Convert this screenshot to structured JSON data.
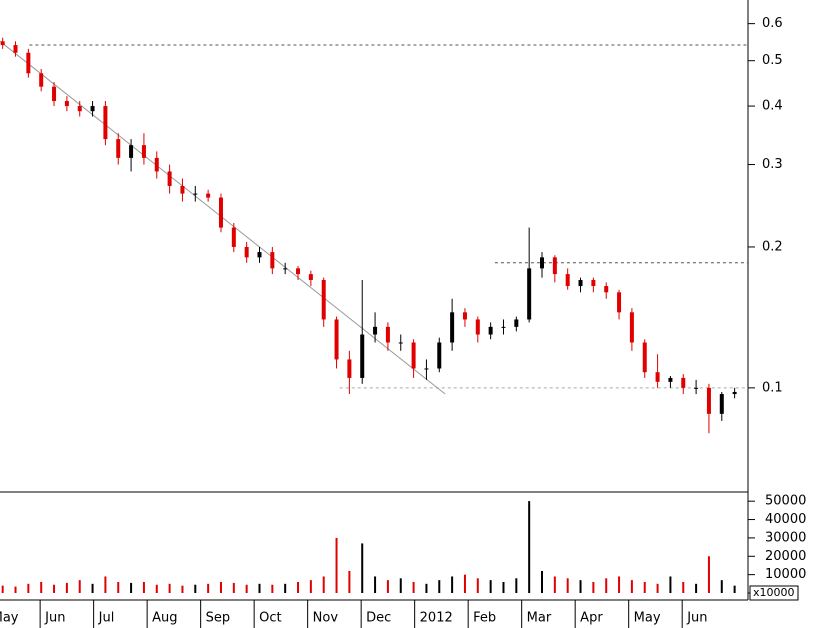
{
  "chart_data": {
    "type": "candlestick",
    "log_y": true,
    "up_color": "#000000",
    "down_color": "#e00000",
    "x": [
      0.3,
      0.54,
      0.78,
      1.02,
      1.26,
      1.5,
      1.74,
      1.98,
      2.22,
      2.46,
      2.7,
      2.94,
      3.18,
      3.42,
      3.66,
      3.9,
      4.14,
      4.38,
      4.62,
      4.86,
      5.1,
      5.34,
      5.58,
      5.82,
      6.06,
      6.3,
      6.54,
      6.78,
      7.02,
      7.26,
      7.5,
      7.74,
      7.98,
      8.22,
      8.46,
      8.7,
      8.94,
      9.18,
      9.42,
      9.66,
      9.9,
      10.14,
      10.38,
      10.62,
      10.86,
      11.1,
      11.34,
      11.58,
      11.82,
      12.06,
      12.3,
      12.54,
      12.78,
      13.02,
      13.26,
      13.5,
      13.74,
      13.98
    ],
    "open": [
      0.55,
      0.54,
      0.52,
      0.47,
      0.44,
      0.41,
      0.4,
      0.39,
      0.4,
      0.34,
      0.31,
      0.33,
      0.31,
      0.29,
      0.27,
      0.26,
      0.26,
      0.255,
      0.22,
      0.2,
      0.19,
      0.195,
      0.18,
      0.18,
      0.175,
      0.17,
      0.14,
      0.115,
      0.105,
      0.13,
      0.135,
      0.125,
      0.125,
      0.11,
      0.11,
      0.125,
      0.145,
      0.14,
      0.13,
      0.135,
      0.135,
      0.14,
      0.18,
      0.19,
      0.175,
      0.165,
      0.17,
      0.165,
      0.16,
      0.145,
      0.125,
      0.108,
      0.103,
      0.105,
      0.1,
      0.1,
      0.088,
      0.097
    ],
    "high": [
      0.56,
      0.55,
      0.53,
      0.48,
      0.45,
      0.42,
      0.41,
      0.41,
      0.41,
      0.35,
      0.34,
      0.35,
      0.32,
      0.3,
      0.28,
      0.27,
      0.265,
      0.26,
      0.225,
      0.205,
      0.2,
      0.2,
      0.185,
      0.182,
      0.178,
      0.172,
      0.142,
      0.12,
      0.17,
      0.145,
      0.138,
      0.13,
      0.127,
      0.115,
      0.128,
      0.155,
      0.148,
      0.142,
      0.138,
      0.14,
      0.142,
      0.22,
      0.195,
      0.192,
      0.18,
      0.172,
      0.172,
      0.168,
      0.162,
      0.148,
      0.127,
      0.118,
      0.106,
      0.107,
      0.104,
      0.102,
      0.098,
      0.1
    ],
    "low": [
      0.53,
      0.51,
      0.46,
      0.43,
      0.4,
      0.39,
      0.38,
      0.38,
      0.33,
      0.3,
      0.29,
      0.3,
      0.28,
      0.26,
      0.25,
      0.25,
      0.25,
      0.215,
      0.195,
      0.185,
      0.185,
      0.175,
      0.175,
      0.17,
      0.165,
      0.135,
      0.11,
      0.097,
      0.102,
      0.125,
      0.12,
      0.12,
      0.105,
      0.104,
      0.108,
      0.12,
      0.135,
      0.125,
      0.127,
      0.13,
      0.132,
      0.138,
      0.172,
      0.168,
      0.162,
      0.16,
      0.16,
      0.155,
      0.14,
      0.12,
      0.105,
      0.1,
      0.1,
      0.097,
      0.097,
      0.08,
      0.085,
      0.095
    ],
    "close": [
      0.54,
      0.52,
      0.47,
      0.44,
      0.41,
      0.4,
      0.39,
      0.4,
      0.34,
      0.31,
      0.33,
      0.31,
      0.29,
      0.27,
      0.26,
      0.26,
      0.255,
      0.22,
      0.2,
      0.19,
      0.195,
      0.18,
      0.18,
      0.175,
      0.17,
      0.14,
      0.115,
      0.105,
      0.13,
      0.135,
      0.125,
      0.125,
      0.11,
      0.11,
      0.125,
      0.145,
      0.14,
      0.13,
      0.135,
      0.135,
      0.14,
      0.18,
      0.19,
      0.175,
      0.165,
      0.17,
      0.165,
      0.16,
      0.145,
      0.125,
      0.108,
      0.103,
      0.105,
      0.1,
      0.1,
      0.088,
      0.097,
      0.098
    ],
    "volume": [
      4000,
      3500,
      5000,
      6000,
      4500,
      5500,
      7000,
      5000,
      9000,
      6000,
      5500,
      6000,
      4500,
      5000,
      4000,
      4500,
      5000,
      6000,
      5500,
      4500,
      5000,
      4500,
      5000,
      6000,
      7000,
      9000,
      30000,
      12000,
      27000,
      9000,
      7000,
      8000,
      6000,
      5000,
      7000,
      9000,
      10000,
      8000,
      7000,
      6000,
      8000,
      50000,
      12000,
      9000,
      8000,
      7000,
      6000,
      8000,
      9000,
      7000,
      6000,
      5000,
      9000,
      6000,
      5000,
      20000,
      7000,
      4000
    ],
    "xlim": [
      0.25,
      14.23
    ],
    "xticks": [
      {
        "value": 0,
        "label": "May"
      },
      {
        "value": 1,
        "label": "Jun"
      },
      {
        "value": 2,
        "label": "Jul"
      },
      {
        "value": 3,
        "label": "Aug"
      },
      {
        "value": 4,
        "label": "Sep"
      },
      {
        "value": 5,
        "label": "Oct"
      },
      {
        "value": 6,
        "label": "Nov"
      },
      {
        "value": 7,
        "label": "Dec"
      },
      {
        "value": 8,
        "label": "2012"
      },
      {
        "value": 9,
        "label": "Feb"
      },
      {
        "value": 10,
        "label": "Mar"
      },
      {
        "value": 11,
        "label": "Apr"
      },
      {
        "value": 12,
        "label": "May"
      },
      {
        "value": 13,
        "label": "Jun"
      }
    ],
    "ylim": [
      0.0605,
      0.674
    ],
    "yticks": [
      0.1,
      0.2,
      0.3,
      0.4,
      0.5,
      0.6
    ],
    "volume_ylim": [
      0,
      55000
    ],
    "volume_yticks": [
      0,
      10000,
      20000,
      30000,
      40000,
      50000
    ],
    "volume_unit_label": "x10000",
    "trend_lines": [
      {
        "x": [
          0.25,
          8.57
        ],
        "y": [
          0.55,
          0.097
        ],
        "color": "#999999",
        "dashed": false
      }
    ],
    "horizontal_lines": [
      {
        "y": 0.54,
        "x": [
          0.8,
          14.23
        ],
        "color": "#555555"
      },
      {
        "y": 0.185,
        "x": [
          9.5,
          14.23
        ],
        "color": "#555555"
      },
      {
        "y": 0.1,
        "x": [
          6.6,
          14.23
        ],
        "color": "#aaaaaa"
      }
    ]
  }
}
